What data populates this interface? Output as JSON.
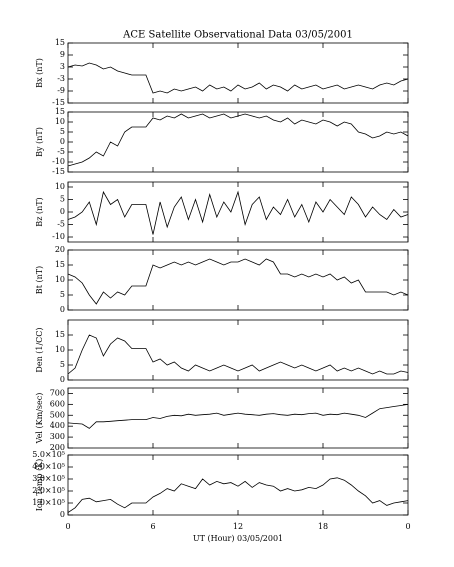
{
  "chart_data": [
    {
      "type": "line",
      "title": "ACE Satellite Observational Data  03/05/2001",
      "ylabel": "Bx (nT)",
      "ylim": [
        -15,
        15
      ],
      "yticks": [
        -15,
        -9,
        -3,
        3,
        9,
        15
      ],
      "color": "#000000",
      "x": [
        0,
        0.5,
        1,
        1.5,
        2,
        2.5,
        3,
        3.5,
        4,
        4.5,
        5,
        5.5,
        6,
        6.5,
        7,
        7.5,
        8,
        8.5,
        9,
        9.5,
        10,
        10.5,
        11,
        11.5,
        12,
        12.5,
        13,
        13.5,
        14,
        14.5,
        15,
        15.5,
        16,
        16.5,
        17,
        17.5,
        18,
        18.5,
        19,
        19.5,
        20,
        20.5,
        21,
        21.5,
        22,
        22.5,
        23,
        23.5,
        24
      ],
      "values": [
        3,
        4,
        3.5,
        5,
        4,
        2,
        3,
        1,
        0,
        -1,
        -1,
        -1,
        -10,
        -9,
        -10,
        -8,
        -9,
        -8,
        -7,
        -9,
        -6,
        -8,
        -7,
        -9,
        -6,
        -8,
        -7,
        -5,
        -8,
        -6,
        -7,
        -9,
        -6,
        -8,
        -7,
        -6,
        -8,
        -7,
        -6,
        -8,
        -7,
        -6,
        -7,
        -8,
        -6,
        -5,
        -6,
        -4,
        -3
      ]
    },
    {
      "type": "line",
      "ylabel": "By (nT)",
      "ylim": [
        -15,
        15
      ],
      "yticks": [
        -15,
        -10,
        -5,
        0,
        5,
        10,
        15
      ],
      "color": "#000000",
      "x": [
        0,
        0.5,
        1,
        1.5,
        2,
        2.5,
        3,
        3.5,
        4,
        4.5,
        5,
        5.5,
        6,
        6.5,
        7,
        7.5,
        8,
        8.5,
        9,
        9.5,
        10,
        10.5,
        11,
        11.5,
        12,
        12.5,
        13,
        13.5,
        14,
        14.5,
        15,
        15.5,
        16,
        16.5,
        17,
        17.5,
        18,
        18.5,
        19,
        19.5,
        20,
        20.5,
        21,
        21.5,
        22,
        22.5,
        23,
        23.5,
        24
      ],
      "values": [
        -12,
        -11,
        -10,
        -8,
        -5,
        -7,
        0,
        -2,
        5,
        7.5,
        7.5,
        7.5,
        12,
        11,
        13,
        12,
        14,
        12,
        13,
        14,
        12,
        13,
        14,
        12,
        13,
        14,
        13,
        12,
        13,
        11,
        10,
        12,
        9,
        11,
        10,
        9,
        11,
        10,
        8,
        10,
        9,
        5,
        4,
        2,
        3,
        5,
        4,
        5,
        3
      ]
    },
    {
      "type": "line",
      "ylabel": "Bz (nT)",
      "ylim": [
        -12,
        12
      ],
      "yticks": [
        -10,
        -5,
        0,
        5,
        10
      ],
      "color": "#000000",
      "x": [
        0,
        0.5,
        1,
        1.5,
        2,
        2.5,
        3,
        3.5,
        4,
        4.5,
        5,
        5.5,
        6,
        6.5,
        7,
        7.5,
        8,
        8.5,
        9,
        9.5,
        10,
        10.5,
        11,
        11.5,
        12,
        12.5,
        13,
        13.5,
        14,
        14.5,
        15,
        15.5,
        16,
        16.5,
        17,
        17.5,
        18,
        18.5,
        19,
        19.5,
        20,
        20.5,
        21,
        21.5,
        22,
        22.5,
        23,
        23.5,
        24
      ],
      "values": [
        -3,
        -2,
        0,
        4,
        -5,
        8,
        3,
        5,
        -2,
        3,
        3,
        3,
        -9,
        4,
        -6,
        2,
        6,
        -3,
        5,
        -4,
        7,
        -2,
        4,
        0,
        8,
        -5,
        3,
        6,
        -3,
        2,
        -1,
        5,
        -2,
        3,
        -4,
        4,
        0,
        5,
        2,
        -1,
        6,
        3,
        -2,
        2,
        -1,
        -3,
        1,
        -2,
        -1
      ]
    },
    {
      "type": "line",
      "ylabel": "Bt (nT)",
      "ylim": [
        0,
        20
      ],
      "yticks": [
        0,
        5,
        10,
        15,
        20
      ],
      "color": "#000000",
      "x": [
        0,
        0.5,
        1,
        1.5,
        2,
        2.5,
        3,
        3.5,
        4,
        4.5,
        5,
        5.5,
        6,
        6.5,
        7,
        7.5,
        8,
        8.5,
        9,
        9.5,
        10,
        10.5,
        11,
        11.5,
        12,
        12.5,
        13,
        13.5,
        14,
        14.5,
        15,
        15.5,
        16,
        16.5,
        17,
        17.5,
        18,
        18.5,
        19,
        19.5,
        20,
        20.5,
        21,
        21.5,
        22,
        22.5,
        23,
        23.5,
        24
      ],
      "values": [
        12,
        11,
        9,
        5,
        2,
        6,
        4,
        6,
        5,
        8,
        8,
        8,
        15,
        14,
        15,
        16,
        15,
        16,
        15,
        16,
        17,
        16,
        15,
        16,
        16,
        17,
        16,
        15,
        17,
        16,
        12,
        12,
        11,
        12,
        11,
        12,
        11,
        12,
        10,
        11,
        9,
        10,
        6,
        6,
        6,
        6,
        5,
        6,
        5
      ]
    },
    {
      "type": "line",
      "ylabel": "Den (1/CC)",
      "ylim": [
        0,
        20
      ],
      "yticks": [
        0,
        5,
        10,
        15
      ],
      "color": "#000000",
      "x": [
        0,
        0.5,
        1,
        1.5,
        2,
        2.5,
        3,
        3.5,
        4,
        4.5,
        5,
        5.5,
        6,
        6.5,
        7,
        7.5,
        8,
        8.5,
        9,
        9.5,
        10,
        10.5,
        11,
        11.5,
        12,
        12.5,
        13,
        13.5,
        14,
        14.5,
        15,
        15.5,
        16,
        16.5,
        17,
        17.5,
        18,
        18.5,
        19,
        19.5,
        20,
        20.5,
        21,
        21.5,
        22,
        22.5,
        23,
        23.5,
        24
      ],
      "values": [
        2,
        4,
        10,
        15,
        14,
        8,
        12,
        14,
        13,
        10.5,
        10.5,
        10.5,
        6,
        7,
        5,
        6,
        4,
        3,
        5,
        4,
        3,
        4,
        5,
        4,
        3,
        4,
        5,
        3,
        4,
        5,
        6,
        5,
        4,
        5,
        4,
        3,
        4,
        5,
        3,
        4,
        3,
        4,
        3,
        2,
        3,
        2,
        2,
        3,
        2.5
      ]
    },
    {
      "type": "line",
      "ylabel": "Vel (Km/sec)",
      "ylim": [
        200,
        750
      ],
      "yticks": [
        200,
        300,
        400,
        500,
        600,
        700
      ],
      "color": "#000000",
      "x": [
        0,
        0.5,
        1,
        1.5,
        2,
        2.5,
        3,
        3.5,
        4,
        4.5,
        5,
        5.5,
        6,
        6.5,
        7,
        7.5,
        8,
        8.5,
        9,
        9.5,
        10,
        10.5,
        11,
        11.5,
        12,
        12.5,
        13,
        13.5,
        14,
        14.5,
        15,
        15.5,
        16,
        16.5,
        17,
        17.5,
        18,
        18.5,
        19,
        19.5,
        20,
        20.5,
        21,
        21.5,
        22,
        22.5,
        23,
        23.5,
        24
      ],
      "values": [
        430,
        425,
        420,
        380,
        440,
        440,
        445,
        450,
        455,
        460,
        460,
        460,
        480,
        470,
        490,
        500,
        495,
        510,
        500,
        505,
        510,
        520,
        500,
        510,
        520,
        510,
        505,
        500,
        510,
        515,
        505,
        500,
        510,
        505,
        515,
        520,
        500,
        510,
        505,
        520,
        510,
        500,
        480,
        520,
        560,
        570,
        580,
        590,
        600
      ]
    },
    {
      "type": "line",
      "ylabel": "Ion Temp (K)",
      "xlabel": "UT (Hour)  03/05/2001",
      "ylim": [
        0,
        500000
      ],
      "yticks": [
        0,
        {
          "value": 100000,
          "label": "1.0×10⁵"
        },
        {
          "value": 200000,
          "label": "2.0×10⁵"
        },
        {
          "value": 300000,
          "label": "3.0×10⁵"
        },
        {
          "value": 400000,
          "label": "4.0×10⁵"
        },
        {
          "value": 500000,
          "label": "5.0×10⁵"
        }
      ],
      "xlim": [
        0,
        24
      ],
      "xticks": [
        0,
        6,
        12,
        18,
        {
          "value": 24,
          "label": "0"
        }
      ],
      "color": "#000000",
      "x": [
        0,
        0.5,
        1,
        1.5,
        2,
        2.5,
        3,
        3.5,
        4,
        4.5,
        5,
        5.5,
        6,
        6.5,
        7,
        7.5,
        8,
        8.5,
        9,
        9.5,
        10,
        10.5,
        11,
        11.5,
        12,
        12.5,
        13,
        13.5,
        14,
        14.5,
        15,
        15.5,
        16,
        16.5,
        17,
        17.5,
        18,
        18.5,
        19,
        19.5,
        20,
        20.5,
        21,
        21.5,
        22,
        22.5,
        23,
        23.5,
        24
      ],
      "values": [
        20000,
        60000,
        130000,
        140000,
        110000,
        120000,
        130000,
        90000,
        60000,
        100000,
        100000,
        100000,
        150000,
        180000,
        220000,
        200000,
        260000,
        240000,
        220000,
        300000,
        250000,
        280000,
        260000,
        270000,
        240000,
        280000,
        230000,
        270000,
        250000,
        240000,
        200000,
        220000,
        200000,
        210000,
        230000,
        220000,
        250000,
        300000,
        310000,
        290000,
        250000,
        200000,
        160000,
        100000,
        120000,
        80000,
        100000,
        110000,
        120000
      ]
    }
  ]
}
